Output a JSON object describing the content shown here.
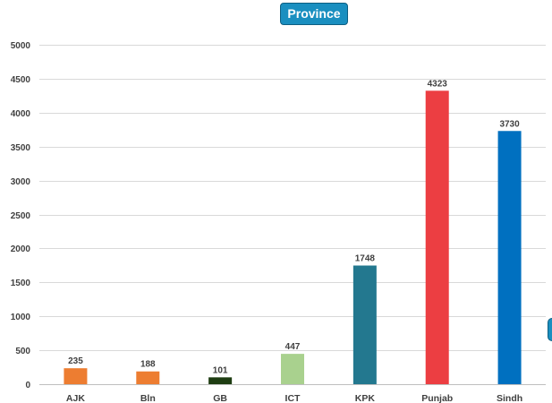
{
  "chart_data": {
    "type": "bar",
    "title": "Province",
    "categories": [
      "AJK",
      "Bln",
      "GB",
      "ICT",
      "KPK",
      "Punjab",
      "Sindh"
    ],
    "values": [
      235,
      188,
      101,
      447,
      1748,
      4323,
      3730
    ],
    "colors": [
      "#ed7d31",
      "#ed7d31",
      "#1e3d12",
      "#a9d18e",
      "#23788f",
      "#ec3e42",
      "#0070c0"
    ],
    "yticks": [
      0,
      500,
      1000,
      1500,
      2000,
      2500,
      3000,
      3500,
      4000,
      4500,
      5000
    ],
    "ylim": [
      0,
      5000
    ],
    "xlabel": "",
    "ylabel": "",
    "grid": true,
    "legend": "none"
  },
  "colors": {
    "badge": "#1a8fc0",
    "gridline": "#d9d9d9",
    "text": "#404040"
  }
}
